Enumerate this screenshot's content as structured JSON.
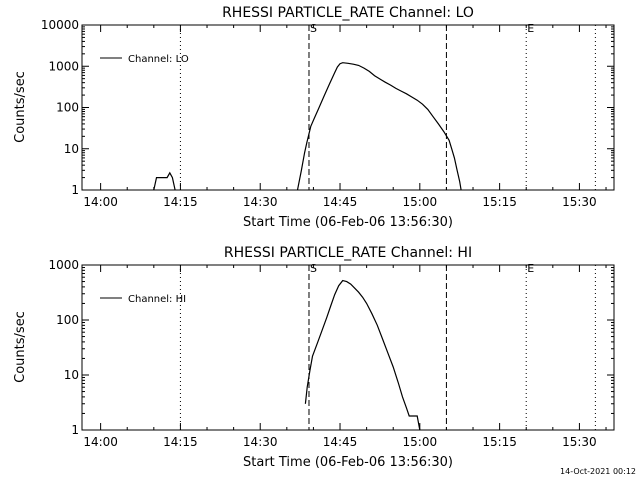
{
  "chart_data": [
    {
      "type": "line",
      "title": "RHESSI PARTICLE_RATE Channel: LO",
      "xlabel": "Start Time (06-Feb-06 13:56:30)",
      "ylabel": "Counts/sec",
      "yscale": "log",
      "ylim": [
        1,
        10000
      ],
      "y_ticks": [
        {
          "v": 1,
          "label": "1"
        },
        {
          "v": 10,
          "label": "10"
        },
        {
          "v": 100,
          "label": "100"
        },
        {
          "v": 1000,
          "label": "1000"
        },
        {
          "v": 10000,
          "label": "10000"
        }
      ],
      "x_ticks": [
        "14:00",
        "14:15",
        "14:30",
        "14:45",
        "15:00",
        "15:15",
        "15:30"
      ],
      "legend": {
        "label": "Channel: LO",
        "position": "top-left"
      },
      "markers": [
        {
          "time": "14:39:10",
          "label": "S",
          "style": "dashed"
        },
        {
          "time": "15:05:00",
          "label": "",
          "style": "dashed"
        },
        {
          "time": "15:20:00",
          "label": "E",
          "style": "dotted"
        },
        {
          "time": "14:15:00",
          "label": "",
          "style": "dotted"
        },
        {
          "time": "15:33:00",
          "label": "",
          "style": "dotted"
        }
      ],
      "series": [
        {
          "name": "Channel: LO",
          "segments": [
            [
              [
                "14:10:00",
                1
              ],
              [
                "14:10:30",
                2
              ],
              [
                "14:12:30",
                2
              ],
              [
                "14:13:00",
                2.6
              ],
              [
                "14:13:30",
                2
              ],
              [
                "14:14:00",
                1
              ]
            ],
            [
              [
                "14:37:00",
                1
              ],
              [
                "14:37:45",
                3
              ],
              [
                "14:38:20",
                8
              ],
              [
                "14:38:45",
                14
              ],
              [
                "14:39:30",
                35
              ],
              [
                "14:40:10",
                55
              ],
              [
                "14:41:00",
                95
              ],
              [
                "14:42:00",
                190
              ],
              [
                "14:43:00",
                370
              ],
              [
                "14:44:00",
                700
              ],
              [
                "14:44:30",
                960
              ],
              [
                "14:45:00",
                1150
              ],
              [
                "14:45:30",
                1220
              ],
              [
                "14:46:30",
                1180
              ],
              [
                "14:47:30",
                1120
              ],
              [
                "14:48:30",
                1050
              ],
              [
                "14:49:30",
                900
              ],
              [
                "14:50:30",
                750
              ],
              [
                "14:51:30",
                590
              ],
              [
                "14:52:30",
                490
              ],
              [
                "14:53:30",
                410
              ],
              [
                "14:54:30",
                350
              ],
              [
                "14:55:30",
                290
              ],
              [
                "14:56:30",
                250
              ],
              [
                "14:57:30",
                215
              ],
              [
                "14:58:30",
                180
              ],
              [
                "14:59:30",
                150
              ],
              [
                "15:00:30",
                120
              ],
              [
                "15:01:30",
                90
              ],
              [
                "15:02:30",
                60
              ],
              [
                "15:03:30",
                40
              ],
              [
                "15:04:30",
                26
              ],
              [
                "15:05:30",
                16
              ],
              [
                "15:06:00",
                10
              ],
              [
                "15:06:30",
                6
              ],
              [
                "15:07:00",
                3
              ],
              [
                "15:07:30",
                1.6
              ],
              [
                "15:07:45",
                1
              ]
            ]
          ]
        }
      ]
    },
    {
      "type": "line",
      "title": "RHESSI PARTICLE_RATE Channel: HI",
      "xlabel": "Start Time (06-Feb-06 13:56:30)",
      "ylabel": "Counts/sec",
      "yscale": "log",
      "ylim": [
        1,
        1000
      ],
      "y_ticks": [
        {
          "v": 1,
          "label": "1"
        },
        {
          "v": 10,
          "label": "10"
        },
        {
          "v": 100,
          "label": "100"
        },
        {
          "v": 1000,
          "label": "1000"
        }
      ],
      "x_ticks": [
        "14:00",
        "14:15",
        "14:30",
        "14:45",
        "15:00",
        "15:15",
        "15:30"
      ],
      "legend": {
        "label": "Channel: HI",
        "position": "top-left"
      },
      "markers": [
        {
          "time": "14:39:10",
          "label": "S",
          "style": "dashed"
        },
        {
          "time": "15:05:00",
          "label": "",
          "style": "dashed"
        },
        {
          "time": "15:20:00",
          "label": "E",
          "style": "dotted"
        },
        {
          "time": "14:15:00",
          "label": "",
          "style": "dotted"
        },
        {
          "time": "15:33:00",
          "label": "",
          "style": "dotted"
        }
      ],
      "series": [
        {
          "name": "Channel: HI",
          "segments": [
            [
              [
                "14:38:30",
                3
              ],
              [
                "14:38:50",
                6
              ],
              [
                "14:39:20",
                12
              ],
              [
                "14:39:50",
                22
              ],
              [
                "14:40:45",
                38
              ],
              [
                "14:41:30",
                60
              ],
              [
                "14:42:30",
                110
              ],
              [
                "14:43:15",
                180
              ],
              [
                "14:44:00",
                290
              ],
              [
                "14:44:45",
                420
              ],
              [
                "14:45:30",
                520
              ],
              [
                "14:46:15",
                500
              ],
              [
                "14:47:00",
                450
              ],
              [
                "14:47:45",
                380
              ],
              [
                "14:48:30",
                320
              ],
              [
                "14:49:15",
                260
              ],
              [
                "14:50:00",
                200
              ],
              [
                "14:51:00",
                130
              ],
              [
                "14:52:00",
                80
              ],
              [
                "14:53:00",
                45
              ],
              [
                "14:54:00",
                25
              ],
              [
                "14:55:00",
                14
              ],
              [
                "14:56:00",
                7
              ],
              [
                "14:56:45",
                4
              ],
              [
                "14:57:30",
                2.5
              ],
              [
                "14:58:00",
                1.8
              ],
              [
                "14:59:30",
                1.8
              ],
              [
                "15:00:00",
                1
              ]
            ]
          ]
        }
      ]
    }
  ],
  "footer": {
    "timestamp": "14-Oct-2021 00:12"
  }
}
